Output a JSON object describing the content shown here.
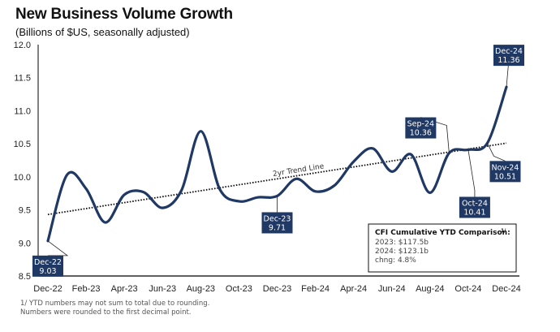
{
  "chart_data": {
    "type": "line",
    "title": "New Business Volume Growth",
    "subtitle": "(Billions of $US, seasonally adjusted)",
    "xlabel": "",
    "ylabel": "",
    "ylim": [
      8.5,
      12.0
    ],
    "yticks": [
      "12.0",
      "11.5",
      "11.0",
      "10.5",
      "10.0",
      "9.5",
      "9.0",
      "8.5"
    ],
    "ytick_values": [
      12.0,
      11.5,
      11.0,
      10.5,
      10.0,
      9.5,
      9.0,
      8.5
    ],
    "xtick_labels": [
      "Dec-22",
      "Feb-23",
      "Apr-23",
      "Jun-23",
      "Aug-23",
      "Oct-23",
      "Dec-23",
      "Feb-24",
      "Apr-24",
      "Jun-24",
      "Aug-24",
      "Oct-24",
      "Dec-24"
    ],
    "x": [
      "Dec-22",
      "Jan-23",
      "Feb-23",
      "Mar-23",
      "Apr-23",
      "May-23",
      "Jun-23",
      "Jul-23",
      "Aug-23",
      "Sep-23",
      "Oct-23",
      "Nov-23",
      "Dec-23",
      "Jan-24",
      "Feb-24",
      "Mar-24",
      "Apr-24",
      "May-24",
      "Jun-24",
      "Jul-24",
      "Aug-24",
      "Sep-24",
      "Oct-24",
      "Nov-24",
      "Dec-24"
    ],
    "series": [
      {
        "name": "New Business Volume",
        "color": "#1f3864",
        "values": [
          9.03,
          10.03,
          9.82,
          9.31,
          9.73,
          9.77,
          9.53,
          9.8,
          10.69,
          9.81,
          9.63,
          9.69,
          9.71,
          9.97,
          9.78,
          9.87,
          10.23,
          10.43,
          10.08,
          10.34,
          9.76,
          10.36,
          10.41,
          10.51,
          11.36
        ]
      },
      {
        "name": "2yr Trend Line",
        "color": "#111111",
        "style": "dotted",
        "start": 9.43,
        "end": 10.51
      }
    ],
    "data_labels": [
      {
        "month": "Dec-22",
        "text": "Dec-22",
        "value": "9.03"
      },
      {
        "month": "Dec-23",
        "text": "Dec-23",
        "value": "9.71"
      },
      {
        "month": "Sep-24",
        "text": "Sep-24",
        "value": "10.36"
      },
      {
        "month": "Oct-24",
        "text": "Oct-24",
        "value": "10.41"
      },
      {
        "month": "Nov-24",
        "text": "Nov-24",
        "value": "10.51"
      },
      {
        "month": "Dec-24",
        "text": "Dec-24",
        "value": "11.36"
      }
    ],
    "trend_label": "2yr Trend Line",
    "grid": false,
    "label_color": "#1f3864",
    "comparison_box": {
      "title": "CFI Cumulative YTD Comparison:",
      "footnote_mark": "1/",
      "lines": [
        "2023: $117.5b",
        "2024: $123.1b",
        "chng: 4.8%"
      ]
    }
  },
  "footnotes": [
    "1/ YTD numbers may not sum to total due to rounding.",
    "Numbers were rounded to the first decimal point."
  ]
}
